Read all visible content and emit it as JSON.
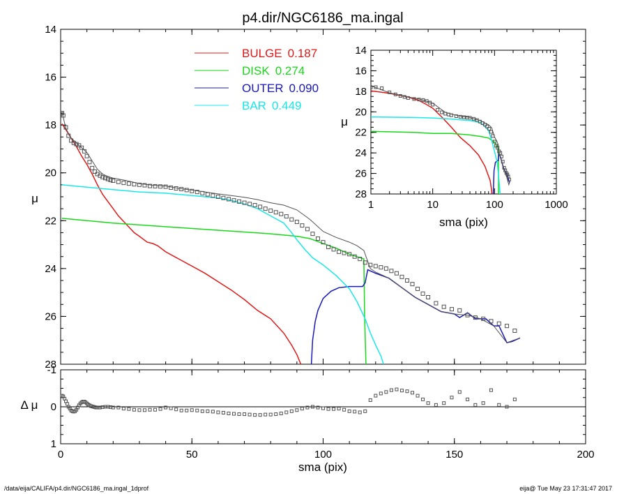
{
  "title": "p4.dir/NGC6186_ma.ingal",
  "footer": {
    "path": "/data/eija/CALIFA/p4.dir/NGC6186_ma.ingal_1dprof",
    "stamp": "eija@  Tue May 23 17:31:47 2017"
  },
  "colors": {
    "bulge": "#e01818",
    "disk": "#18d818",
    "outer": "#1818b8",
    "bar": "#18e8e8",
    "data": "#707070",
    "model": "#505050"
  },
  "legend": [
    {
      "name": "BULGE",
      "value": "0.187",
      "series": "bulge"
    },
    {
      "name": "DISK",
      "value": "0.274",
      "series": "disk"
    },
    {
      "name": "OUTER",
      "value": "0.090",
      "series": "outer"
    },
    {
      "name": "BAR",
      "value": "0.449",
      "series": "bar"
    }
  ],
  "chart_data": [
    {
      "type": "line",
      "id": "main",
      "xlabel": "sma (pix)",
      "ylabel": "μ",
      "xlim": [
        0,
        200
      ],
      "ylim": [
        28,
        14
      ],
      "xticks": [
        0,
        50,
        100,
        150,
        200
      ],
      "yticks": [
        14,
        16,
        18,
        20,
        22,
        24,
        26,
        28
      ],
      "series": [
        {
          "key": "bulge",
          "name": "BULGE",
          "x": [
            0.5,
            2,
            4,
            6,
            8,
            10,
            12,
            14,
            16,
            18,
            20,
            22,
            25,
            28,
            30,
            33,
            35,
            37,
            40,
            45,
            50,
            55,
            60,
            65,
            70,
            75,
            80,
            85,
            88,
            90,
            91.5
          ],
          "y": [
            17.95,
            18.2,
            18.55,
            18.9,
            19.3,
            19.65,
            20.05,
            20.5,
            20.9,
            21.2,
            21.5,
            21.8,
            22.15,
            22.5,
            22.65,
            22.9,
            22.95,
            23.05,
            23.3,
            23.6,
            23.9,
            24.2,
            24.55,
            24.9,
            25.3,
            25.75,
            26.1,
            26.7,
            27.2,
            27.6,
            28.0
          ]
        },
        {
          "key": "disk",
          "name": "DISK",
          "x": [
            0.5,
            20,
            40,
            60,
            80,
            90,
            95,
            100,
            105,
            110,
            115.5,
            115.8,
            116.3
          ],
          "y": [
            21.9,
            22.1,
            22.25,
            22.4,
            22.55,
            22.65,
            22.75,
            22.95,
            23.15,
            23.4,
            23.6,
            26.0,
            28.0
          ]
        },
        {
          "key": "outer",
          "name": "OUTER",
          "x": [
            95.5,
            96,
            97,
            98,
            100,
            103,
            106,
            110,
            115,
            116,
            117,
            120,
            125,
            130,
            135,
            140,
            145,
            150,
            152,
            155,
            158,
            162,
            165,
            167,
            170,
            172,
            175
          ],
          "y": [
            28.0,
            27.0,
            26.2,
            25.75,
            25.25,
            24.95,
            24.8,
            24.75,
            24.75,
            24.6,
            24.05,
            24.2,
            24.4,
            24.8,
            25.2,
            25.5,
            25.8,
            25.9,
            26.05,
            25.85,
            26.1,
            26.1,
            26.4,
            26.4,
            27.1,
            27.05,
            26.9
          ]
        },
        {
          "key": "bar",
          "name": "BAR",
          "x": [
            0.5,
            10,
            20,
            30,
            40,
            50,
            60,
            65,
            70,
            75,
            80,
            85,
            88,
            90,
            93,
            96,
            100,
            105,
            110,
            113,
            116,
            118,
            120,
            122,
            123
          ],
          "y": [
            20.5,
            20.6,
            20.7,
            20.8,
            20.85,
            20.95,
            21.05,
            21.15,
            21.3,
            21.5,
            21.8,
            22.1,
            22.5,
            22.8,
            23.2,
            23.55,
            23.85,
            24.3,
            24.85,
            25.4,
            26.1,
            26.7,
            27.2,
            27.65,
            28.0
          ]
        },
        {
          "key": "model",
          "name": "",
          "x": [
            0.5,
            2,
            4,
            6,
            8,
            10,
            12,
            14,
            16,
            18,
            20,
            25,
            30,
            35,
            40,
            45,
            50,
            55,
            60,
            65,
            70,
            75,
            80,
            85,
            90,
            95,
            100,
            105,
            110,
            113,
            115.5,
            116.5,
            118,
            120,
            125,
            130,
            135,
            140,
            145,
            150,
            155,
            160,
            165,
            170,
            175
          ],
          "y": [
            17.45,
            18.15,
            18.55,
            18.75,
            18.95,
            19.15,
            19.5,
            19.85,
            20.05,
            20.15,
            20.22,
            20.32,
            20.45,
            20.52,
            20.55,
            20.65,
            20.72,
            20.8,
            20.88,
            20.95,
            21.02,
            21.12,
            21.25,
            21.35,
            21.55,
            21.95,
            22.45,
            22.7,
            22.9,
            23.05,
            23.25,
            23.55,
            24.0,
            24.15,
            24.4,
            24.8,
            25.2,
            25.5,
            25.8,
            25.9,
            25.95,
            26.1,
            26.4,
            27.1,
            26.9
          ]
        },
        {
          "key": "data",
          "name": "",
          "x": [
            0.5,
            1,
            2,
            3,
            4,
            5,
            6,
            7,
            8,
            9,
            10,
            11,
            12,
            13,
            14,
            15,
            16,
            17,
            18,
            19,
            20,
            22,
            24,
            26,
            28,
            30,
            32,
            34,
            36,
            38,
            40,
            42,
            44,
            46,
            48,
            50,
            52,
            54,
            56,
            58,
            60,
            62,
            64,
            66,
            68,
            70,
            72,
            74,
            76,
            78,
            80,
            82,
            84,
            86,
            88,
            90,
            92,
            94,
            96,
            98,
            100,
            102,
            104,
            106,
            108,
            110,
            112,
            114,
            116,
            118,
            120,
            122,
            124,
            126,
            128,
            130,
            132,
            134,
            136,
            138,
            140,
            143,
            146,
            149,
            152,
            155,
            158,
            161,
            164,
            167,
            170,
            173
          ],
          "y": [
            17.5,
            17.6,
            18.1,
            18.45,
            18.65,
            18.75,
            18.8,
            18.85,
            18.95,
            19.1,
            19.3,
            19.55,
            19.8,
            19.95,
            20.05,
            20.12,
            20.18,
            20.22,
            20.26,
            20.3,
            20.33,
            20.38,
            20.42,
            20.45,
            20.48,
            20.5,
            20.52,
            20.55,
            20.56,
            20.57,
            20.58,
            20.62,
            20.65,
            20.68,
            20.72,
            20.76,
            20.8,
            20.85,
            20.9,
            20.95,
            21.0,
            21.05,
            21.1,
            21.15,
            21.2,
            21.25,
            21.3,
            21.35,
            21.42,
            21.5,
            21.58,
            21.65,
            21.72,
            21.82,
            21.95,
            22.05,
            22.2,
            22.35,
            22.55,
            22.75,
            22.9,
            23.1,
            23.2,
            23.3,
            23.35,
            23.4,
            23.5,
            23.6,
            23.75,
            23.85,
            23.9,
            23.95,
            24.0,
            24.1,
            24.2,
            24.35,
            24.5,
            24.65,
            24.85,
            25.05,
            25.2,
            25.45,
            25.6,
            25.7,
            25.75,
            25.95,
            26.05,
            26.1,
            26.2,
            26.3,
            26.4,
            26.6
          ]
        }
      ]
    },
    {
      "type": "scatter",
      "id": "residual",
      "xlabel": "sma (pix)",
      "ylabel": "Δ μ",
      "xlim": [
        0,
        200
      ],
      "ylim": [
        -1,
        1
      ],
      "xticks": [
        0,
        50,
        100,
        150,
        200
      ],
      "yticks": [
        -1,
        0,
        1
      ],
      "series": [
        {
          "key": "data",
          "name": "",
          "x": [
            0.5,
            1,
            1.5,
            2,
            2.5,
            3,
            3.5,
            4,
            4.5,
            5,
            5.5,
            6,
            6.5,
            7,
            7.5,
            8,
            8.5,
            9,
            9.5,
            10,
            10.5,
            11,
            11.5,
            12,
            12.5,
            13,
            13.5,
            14,
            14.5,
            15,
            16,
            17,
            18,
            19,
            20,
            22,
            24,
            26,
            28,
            30,
            32,
            34,
            36,
            38,
            40,
            42,
            44,
            46,
            48,
            50,
            52,
            54,
            56,
            58,
            60,
            62,
            64,
            66,
            68,
            70,
            72,
            74,
            76,
            78,
            80,
            82,
            84,
            86,
            88,
            90,
            92,
            94,
            96,
            98,
            100,
            102,
            104,
            106,
            108,
            110,
            112,
            114,
            116,
            118,
            120,
            122,
            124,
            126,
            128,
            130,
            132,
            134,
            136,
            138,
            140,
            143,
            146,
            149,
            152,
            155,
            158,
            161,
            164,
            167,
            170,
            173
          ],
          "y": [
            -0.3,
            -0.28,
            -0.22,
            -0.15,
            -0.08,
            0.0,
            0.05,
            0.1,
            0.12,
            0.13,
            0.12,
            0.08,
            0.02,
            -0.04,
            -0.09,
            -0.12,
            -0.14,
            -0.14,
            -0.12,
            -0.09,
            -0.06,
            -0.04,
            -0.02,
            -0.01,
            0.0,
            0.01,
            0.02,
            0.02,
            0.02,
            0.02,
            0.01,
            0.0,
            0.0,
            0.01,
            0.02,
            0.02,
            0.05,
            0.06,
            0.08,
            0.09,
            0.09,
            0.08,
            0.08,
            0.06,
            0.02,
            0.04,
            0.07,
            0.1,
            0.1,
            0.09,
            0.1,
            0.12,
            0.12,
            0.13,
            0.15,
            0.16,
            0.18,
            0.19,
            0.2,
            0.2,
            0.21,
            0.22,
            0.22,
            0.21,
            0.21,
            0.2,
            0.18,
            0.15,
            0.12,
            0.09,
            0.05,
            0.02,
            0.0,
            0.02,
            0.04,
            0.06,
            0.06,
            0.05,
            0.08,
            0.12,
            0.13,
            0.15,
            0.12,
            -0.18,
            -0.3,
            -0.36,
            -0.4,
            -0.45,
            -0.47,
            -0.44,
            -0.42,
            -0.38,
            -0.3,
            -0.2,
            -0.1,
            -0.05,
            -0.1,
            -0.25,
            -0.4,
            -0.2,
            -0.05,
            -0.1,
            -0.45,
            -0.05,
            0.0,
            -0.2
          ]
        }
      ]
    },
    {
      "type": "line",
      "id": "inset",
      "xlabel": "sma (pix)",
      "ylabel": "μ",
      "xscale": "log",
      "xlim": [
        1,
        1000
      ],
      "ylim": [
        28,
        14
      ],
      "xticks": [
        1,
        10,
        100,
        1000
      ],
      "yticks": [
        14,
        16,
        18,
        20,
        22,
        24,
        26,
        28
      ],
      "series": [
        {
          "key": "bulge",
          "name": "BULGE",
          "x": [
            1,
            2,
            4,
            6,
            8,
            10,
            14,
            20,
            28,
            40,
            55,
            70,
            85,
            91.5
          ],
          "y": [
            17.95,
            18.2,
            18.55,
            18.9,
            19.3,
            19.65,
            20.5,
            21.5,
            22.5,
            23.3,
            24.2,
            25.3,
            26.7,
            28.0
          ]
        },
        {
          "key": "disk",
          "name": "DISK",
          "x": [
            1,
            5,
            10,
            20,
            40,
            60,
            80,
            100,
            110,
            115.5,
            116.3
          ],
          "y": [
            21.9,
            22.0,
            22.1,
            22.1,
            22.25,
            22.4,
            22.55,
            22.95,
            23.4,
            23.6,
            28.0
          ]
        },
        {
          "key": "outer",
          "name": "OUTER",
          "x": [
            95.5,
            98,
            103,
            110,
            115,
            117,
            125,
            140,
            160,
            175
          ],
          "y": [
            28.0,
            25.75,
            24.95,
            24.75,
            24.75,
            24.05,
            24.4,
            25.5,
            26.1,
            26.9
          ]
        },
        {
          "key": "bar",
          "name": "BAR",
          "x": [
            1,
            5,
            10,
            20,
            40,
            60,
            80,
            90,
            100,
            110,
            116,
            120,
            123
          ],
          "y": [
            20.5,
            20.55,
            20.6,
            20.7,
            20.85,
            21.05,
            21.8,
            22.8,
            23.85,
            24.85,
            26.1,
            27.2,
            28.0
          ]
        },
        {
          "key": "model",
          "name": "",
          "x": [
            1,
            2,
            4,
            6,
            10,
            16,
            20,
            30,
            40,
            60,
            80,
            90,
            100,
            110,
            115.5,
            118,
            130,
            150,
            170,
            175
          ],
          "y": [
            17.45,
            18.15,
            18.55,
            18.75,
            19.15,
            20.05,
            20.22,
            20.45,
            20.55,
            20.88,
            21.25,
            21.55,
            22.45,
            22.9,
            23.25,
            24.0,
            24.8,
            25.9,
            27.1,
            26.9
          ]
        },
        {
          "key": "data",
          "name": "",
          "x": [
            1,
            1.2,
            1.5,
            2,
            2.5,
            3,
            3.5,
            4,
            5,
            6,
            7,
            8,
            9,
            10,
            12,
            14,
            16,
            18,
            20,
            24,
            28,
            32,
            36,
            40,
            46,
            52,
            58,
            64,
            70,
            76,
            82,
            88,
            94,
            100,
            106,
            112,
            118,
            124,
            130,
            136,
            143,
            149,
            155,
            161,
            167,
            173
          ],
          "y": [
            17.6,
            17.6,
            17.7,
            18.1,
            18.3,
            18.45,
            18.55,
            18.65,
            18.75,
            18.8,
            18.85,
            18.95,
            19.1,
            19.3,
            19.8,
            20.05,
            20.18,
            20.26,
            20.33,
            20.42,
            20.48,
            20.52,
            20.56,
            20.58,
            20.68,
            20.8,
            20.95,
            21.1,
            21.25,
            21.42,
            21.65,
            21.95,
            22.35,
            22.9,
            23.3,
            23.5,
            23.85,
            24.0,
            24.35,
            24.85,
            25.45,
            25.7,
            25.95,
            26.1,
            26.3,
            26.6
          ]
        }
      ]
    }
  ]
}
